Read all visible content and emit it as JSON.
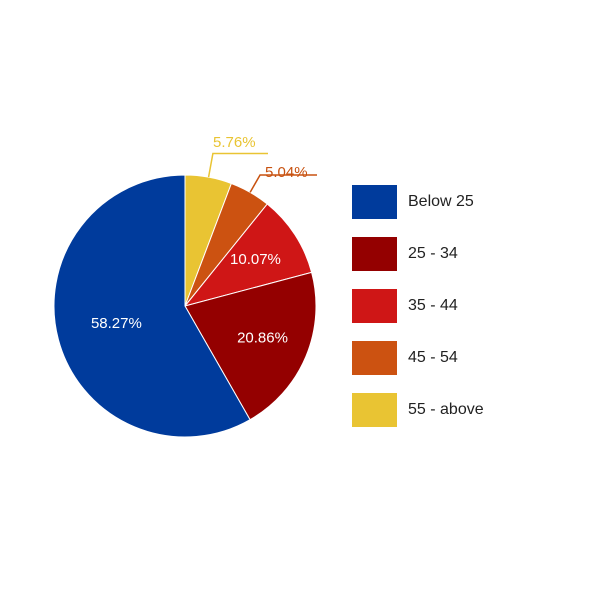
{
  "chart_data": {
    "type": "pie",
    "categories": [
      "Below 25",
      "25 - 34",
      "35 - 44",
      "45 - 54",
      "55 - above"
    ],
    "values": [
      58.27,
      20.86,
      10.07,
      5.04,
      5.76
    ],
    "value_labels": [
      "58.27%",
      "20.86%",
      "10.07%",
      "5.04%",
      "5.76%"
    ],
    "colors": [
      "#003b9c",
      "#940000",
      "#cf1616",
      "#cc5211",
      "#e9c433"
    ],
    "label_colors": [
      "#ffffff",
      "#ffffff",
      "#ffffff",
      "#c85210",
      "#e9c433"
    ],
    "legend_position": "right",
    "start_angle": "top",
    "direction": "clockwise-from-last"
  },
  "legend": {
    "items": [
      {
        "label": "Below 25",
        "color": "#003b9c"
      },
      {
        "label": "25 - 34",
        "color": "#940000"
      },
      {
        "label": "35 - 44",
        "color": "#cf1616"
      },
      {
        "label": "45 - 54",
        "color": "#cc5211"
      },
      {
        "label": "55 - above",
        "color": "#e9c433"
      }
    ]
  }
}
